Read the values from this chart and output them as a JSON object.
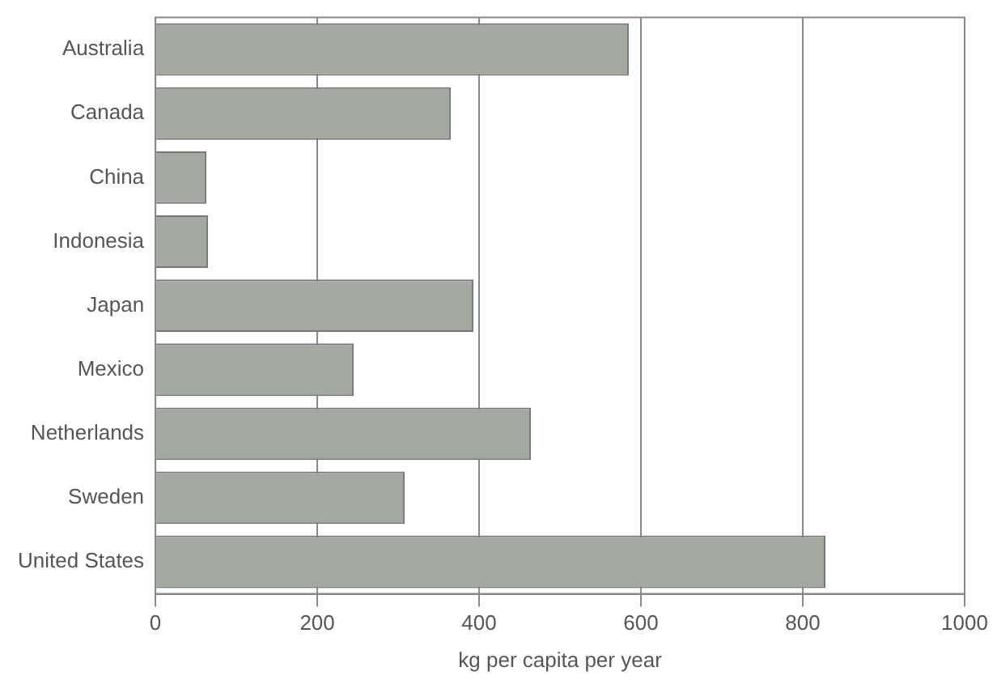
{
  "chart_data": {
    "type": "bar",
    "orientation": "horizontal",
    "xlabel": "kg per capita per year",
    "categories": [
      "Australia",
      "Canada",
      "China",
      "Indonesia",
      "Japan",
      "Mexico",
      "Netherlands",
      "Sweden",
      "United States"
    ],
    "values": [
      585,
      365,
      63,
      65,
      393,
      245,
      464,
      308,
      828
    ],
    "color": "#a3a8a0",
    "xlim": [
      0,
      1000
    ],
    "xticks": [
      0,
      200,
      400,
      600,
      800,
      1000
    ],
    "grid": "x",
    "legend": false
  }
}
